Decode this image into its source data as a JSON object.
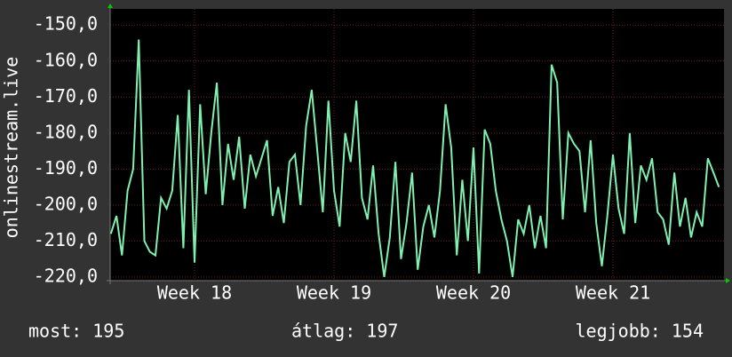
{
  "chart_data": {
    "type": "line",
    "y_label": "onlinestream.live",
    "x": [
      17.4,
      17.44,
      17.48,
      17.52,
      17.56,
      17.6,
      17.64,
      17.68,
      17.72,
      17.76,
      17.8,
      17.84,
      17.88,
      17.92,
      17.96,
      18.0,
      18.04,
      18.08,
      18.12,
      18.16,
      18.2,
      18.24,
      18.28,
      18.32,
      18.36,
      18.4,
      18.44,
      18.48,
      18.52,
      18.56,
      18.6,
      18.64,
      18.68,
      18.72,
      18.76,
      18.8,
      18.84,
      18.88,
      18.92,
      18.96,
      19.0,
      19.04,
      19.08,
      19.12,
      19.16,
      19.2,
      19.24,
      19.28,
      19.32,
      19.36,
      19.4,
      19.44,
      19.48,
      19.52,
      19.56,
      19.6,
      19.64,
      19.68,
      19.72,
      19.76,
      19.8,
      19.84,
      19.88,
      19.92,
      19.96,
      20.0,
      20.04,
      20.08,
      20.12,
      20.16,
      20.2,
      20.24,
      20.28,
      20.32,
      20.36,
      20.4,
      20.44,
      20.48,
      20.52,
      20.56,
      20.6,
      20.64,
      20.68,
      20.72,
      20.76,
      20.8,
      20.84,
      20.88,
      20.92,
      20.96,
      21.0,
      21.04,
      21.08,
      21.12,
      21.16,
      21.2,
      21.24,
      21.28,
      21.32,
      21.36,
      21.4,
      21.44,
      21.48,
      21.52,
      21.56,
      21.6,
      21.64,
      21.68,
      21.72,
      21.76
    ],
    "series": [
      {
        "color": "#80f0b0",
        "values": [
          -208,
          -203,
          -214,
          -196,
          -190,
          -154,
          -210,
          -213,
          -214,
          -198,
          -201,
          -196,
          -175,
          -212,
          -168,
          -216,
          -172,
          -197,
          -180,
          -166,
          -200,
          -183,
          -193,
          -181,
          -201,
          -186,
          -192,
          -187,
          -182,
          -203,
          -195,
          -205,
          -188,
          -186,
          -200,
          -178,
          -168,
          -185,
          -202,
          -171,
          -196,
          -206,
          -180,
          -188,
          -171,
          -198,
          -204,
          -189,
          -208,
          -220,
          -209,
          -188,
          -215,
          -205,
          -191,
          -218,
          -206,
          -200,
          -209,
          -196,
          -172,
          -184,
          -214,
          -193,
          -210,
          -184,
          -219,
          -179,
          -183,
          -196,
          -204,
          -210,
          -220,
          -204,
          -208,
          -200,
          -212,
          -203,
          -212,
          -161,
          -166,
          -204,
          -180,
          -183,
          -185,
          -202,
          -182,
          -205,
          -217,
          -203,
          -186,
          -201,
          -208,
          -180,
          -205,
          -189,
          -193,
          -187,
          -202,
          -204,
          -211,
          -191,
          -206,
          -198,
          -209,
          -202,
          -206,
          -187,
          -191,
          -195
        ]
      }
    ],
    "xlim": [
      17.395,
      21.796
    ],
    "xticks": [
      {
        "value": 18,
        "label": "Week 18"
      },
      {
        "value": 19,
        "label": "Week 19"
      },
      {
        "value": 20,
        "label": "Week 20"
      },
      {
        "value": 21,
        "label": "Week 21"
      }
    ],
    "ylim": [
      -221,
      -145.5
    ],
    "yticks": [
      {
        "value": -150,
        "label": "-150,0"
      },
      {
        "value": -160,
        "label": "-160,0"
      },
      {
        "value": -170,
        "label": "-170,0"
      },
      {
        "value": -180,
        "label": "-180,0"
      },
      {
        "value": -190,
        "label": "-190,0"
      },
      {
        "value": -200,
        "label": "-200,0"
      },
      {
        "value": -210,
        "label": "-210,0"
      },
      {
        "value": -220,
        "label": "-220,0"
      }
    ],
    "grid": true,
    "footer": [
      "most: 195",
      "átlag: 197",
      "legjobb: 154"
    ]
  }
}
